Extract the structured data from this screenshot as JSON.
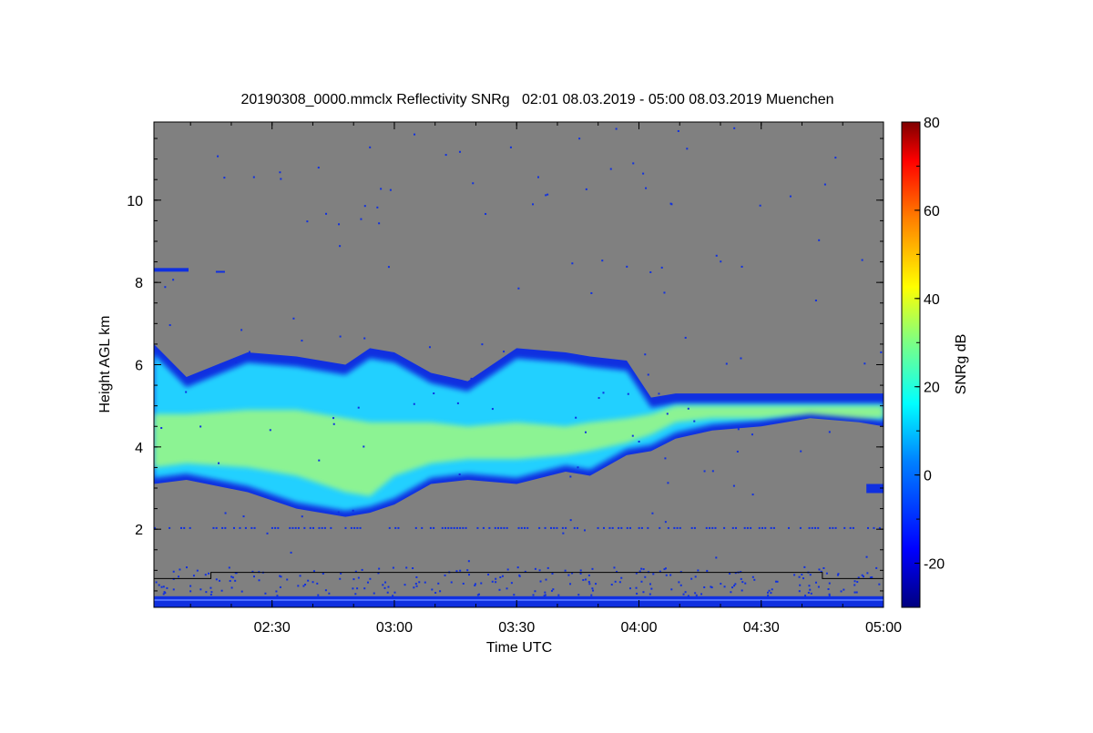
{
  "chart_data": {
    "type": "heatmap",
    "title": "20190308_0000.mmclx Reflectivity SNRg   02:01 08.03.2019 - 05:00 08.03.2019 Muenchen",
    "xlabel": "Time UTC",
    "ylabel": "Height AGL km",
    "colorbar_label": "SNRg dB",
    "x_range_hours": [
      2.017,
      5.0
    ],
    "y_range_km": [
      0.1,
      11.9
    ],
    "colorbar_range": [
      -30,
      80
    ],
    "x_ticks": [
      {
        "label": "02:30",
        "value": 2.5
      },
      {
        "label": "03:00",
        "value": 3.0
      },
      {
        "label": "03:30",
        "value": 3.5
      },
      {
        "label": "04:00",
        "value": 4.0
      },
      {
        "label": "04:30",
        "value": 4.5
      },
      {
        "label": "05:00",
        "value": 5.0
      }
    ],
    "y_ticks": [
      {
        "label": "2",
        "value": 2
      },
      {
        "label": "4",
        "value": 4
      },
      {
        "label": "6",
        "value": 6
      },
      {
        "label": "8",
        "value": 8
      },
      {
        "label": "10",
        "value": 10
      }
    ],
    "colorbar_ticks": [
      {
        "label": "-20",
        "value": -20
      },
      {
        "label": "0",
        "value": 0
      },
      {
        "label": "20",
        "value": 20
      },
      {
        "label": "40",
        "value": 40
      },
      {
        "label": "60",
        "value": 60
      },
      {
        "label": "80",
        "value": 80
      }
    ],
    "cloud_layer": {
      "time": [
        2.017,
        2.15,
        2.4,
        2.6,
        2.8,
        2.9,
        3.0,
        3.15,
        3.3,
        3.5,
        3.7,
        3.8,
        3.95,
        4.05,
        4.15,
        4.3,
        4.5,
        4.7,
        4.9,
        5.0
      ],
      "top_km": [
        6.5,
        5.7,
        6.3,
        6.2,
        6.0,
        6.4,
        6.3,
        5.8,
        5.6,
        6.4,
        6.3,
        6.2,
        6.1,
        5.2,
        5.3,
        5.3,
        5.3,
        5.3,
        5.3,
        5.3
      ],
      "base_km": [
        3.1,
        3.2,
        2.9,
        2.5,
        2.3,
        2.4,
        2.6,
        3.1,
        3.2,
        3.1,
        3.4,
        3.3,
        3.8,
        3.9,
        4.2,
        4.4,
        4.5,
        4.7,
        4.6,
        4.5
      ],
      "core_top_km": [
        4.8,
        4.8,
        4.9,
        4.9,
        4.7,
        4.6,
        4.6,
        4.6,
        4.5,
        4.6,
        4.5,
        4.6,
        4.7,
        4.8,
        5.0,
        5.0,
        5.0,
        5.0,
        5.0,
        5.0
      ],
      "core_base_km": [
        3.5,
        3.6,
        3.5,
        3.3,
        2.9,
        2.8,
        3.3,
        3.6,
        3.7,
        3.7,
        3.8,
        3.9,
        4.1,
        4.3,
        4.6,
        4.7,
        4.7,
        4.8,
        4.7,
        4.7
      ]
    },
    "clutter_line": {
      "time": [
        2.017,
        2.25,
        2.25,
        4.75,
        4.75,
        5.0
      ],
      "height_km": [
        0.8,
        0.8,
        0.95,
        0.95,
        0.8,
        0.8
      ]
    },
    "colors": {
      "background_nodata": "#808080",
      "weak_echo": "#1030e0",
      "mid_echo": "#20d0ff",
      "strong_echo": "#b0ff70"
    }
  }
}
